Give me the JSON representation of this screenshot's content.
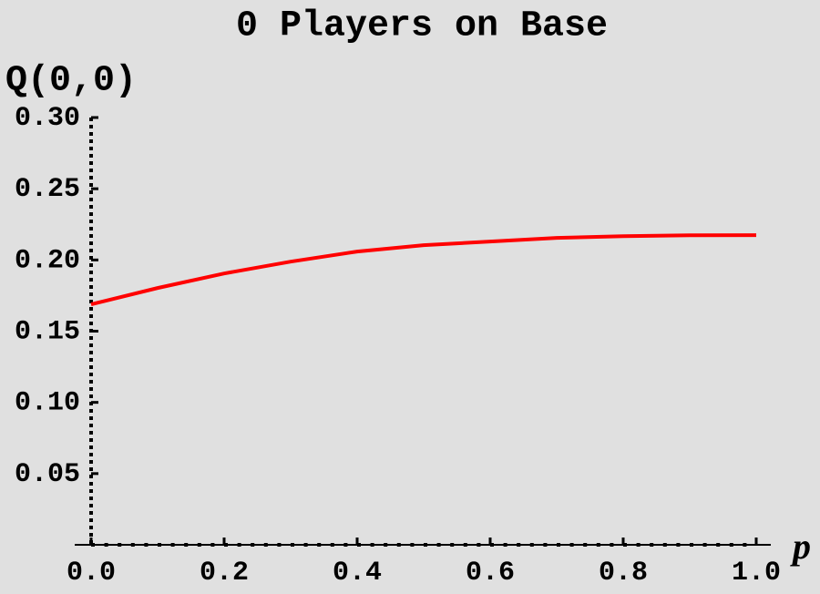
{
  "chart_data": {
    "type": "line",
    "title": "0 Players on Base",
    "x_label": "p",
    "y_label": "Q(0,0)",
    "x": [
      0,
      0.1,
      0.2,
      0.3,
      0.4,
      0.5,
      0.6,
      0.7,
      0.8,
      0.9,
      1.0
    ],
    "series": [
      {
        "name": "Q(0,0)",
        "color": "#ff0000",
        "values": [
          0.1688,
          0.1803,
          0.1905,
          0.1988,
          0.2059,
          0.2104,
          0.2129,
          0.2155,
          0.2167,
          0.2173,
          0.2174
        ]
      }
    ],
    "xlim": [
      0,
      1
    ],
    "ylim": [
      0,
      0.3
    ],
    "xticks": [
      {
        "value": 0,
        "label": "0.0"
      },
      0.2,
      0.4,
      0.6,
      0.8,
      {
        "value": 1,
        "label": "1.0"
      }
    ],
    "yticks": [
      0.05,
      {
        "value": 0.1,
        "label": "0.10"
      },
      0.15,
      {
        "value": 0.2,
        "label": "0.20"
      },
      0.25,
      {
        "value": 0.3,
        "label": "0.30"
      }
    ],
    "grid": false
  }
}
